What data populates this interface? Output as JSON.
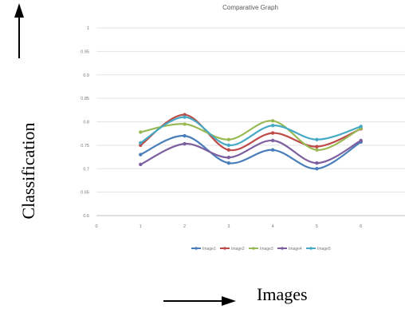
{
  "chart_data": {
    "type": "line",
    "title": "Comparative Graph",
    "xlabel": "Images",
    "ylabel": "Classification",
    "x": [
      1,
      2,
      3,
      4,
      5,
      6
    ],
    "x_ticks": [
      "0",
      "1",
      "2",
      "3",
      "4",
      "5",
      "6"
    ],
    "y_ticks": [
      "0.6",
      "0.65",
      "0.7",
      "0.75",
      "0.8",
      "0.85",
      "0.9",
      "0.95",
      "1"
    ],
    "xlim": [
      0,
      7
    ],
    "ylim": [
      0.6,
      1
    ],
    "grid": "horizontal",
    "legend": "bottom",
    "series": [
      {
        "name": "Image1",
        "color": "#4a7ebb",
        "values": [
          0.73,
          0.77,
          0.712,
          0.74,
          0.7,
          0.757
        ]
      },
      {
        "name": "Image2",
        "color": "#be4b48",
        "values": [
          0.75,
          0.815,
          0.74,
          0.776,
          0.747,
          0.785
        ]
      },
      {
        "name": "Image3",
        "color": "#98b954",
        "values": [
          0.778,
          0.795,
          0.762,
          0.802,
          0.74,
          0.786
        ]
      },
      {
        "name": "Image4",
        "color": "#7d5fa0",
        "values": [
          0.709,
          0.753,
          0.724,
          0.76,
          0.712,
          0.76
        ]
      },
      {
        "name": "Image5",
        "color": "#46aac5",
        "values": [
          0.755,
          0.81,
          0.75,
          0.792,
          0.762,
          0.79
        ]
      }
    ]
  }
}
